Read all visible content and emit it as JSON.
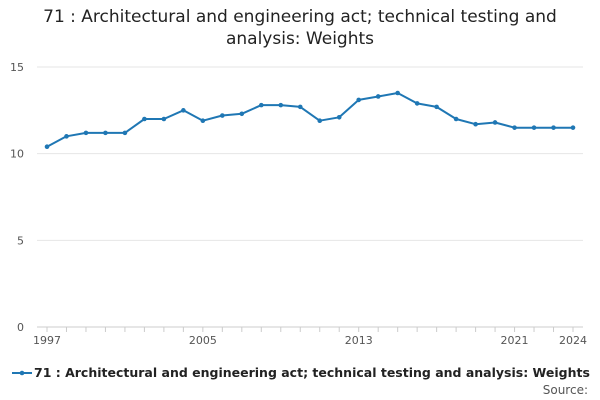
{
  "title_line1": "71 : Architectural and engineering act; technical testing and",
  "title_line2": "analysis: Weights",
  "source_label": "Source:",
  "colors": {
    "series": "#1f77b4",
    "grid": "#e6e6e6",
    "axis": "#cccccc",
    "text": "#555555"
  },
  "chart_data": {
    "type": "line",
    "title": "71 : Architectural and engineering act; technical testing and analysis: Weights",
    "xlabel": "",
    "ylabel": "",
    "xlim": [
      1997,
      2024
    ],
    "ylim": [
      0,
      15
    ],
    "x_tick_labels": [
      "1997",
      "2005",
      "2013",
      "2021",
      "2024"
    ],
    "y_tick_labels": [
      "0",
      "5",
      "10",
      "15"
    ],
    "grid": true,
    "legend_position": "bottom",
    "x": [
      1997,
      1998,
      1999,
      2000,
      2001,
      2002,
      2003,
      2004,
      2005,
      2006,
      2007,
      2008,
      2009,
      2010,
      2011,
      2012,
      2013,
      2014,
      2015,
      2016,
      2017,
      2018,
      2019,
      2020,
      2021,
      2022,
      2023,
      2024
    ],
    "series": [
      {
        "name": "71 : Architectural and engineering act; technical testing and analysis: Weights",
        "values": [
          10.4,
          11.0,
          11.2,
          11.2,
          11.2,
          12.0,
          12.0,
          12.5,
          11.9,
          12.2,
          12.3,
          12.8,
          12.8,
          12.7,
          11.9,
          12.1,
          13.1,
          13.3,
          13.5,
          12.9,
          12.7,
          12.0,
          11.7,
          11.8,
          11.5,
          11.5,
          11.5,
          11.5
        ]
      }
    ]
  }
}
